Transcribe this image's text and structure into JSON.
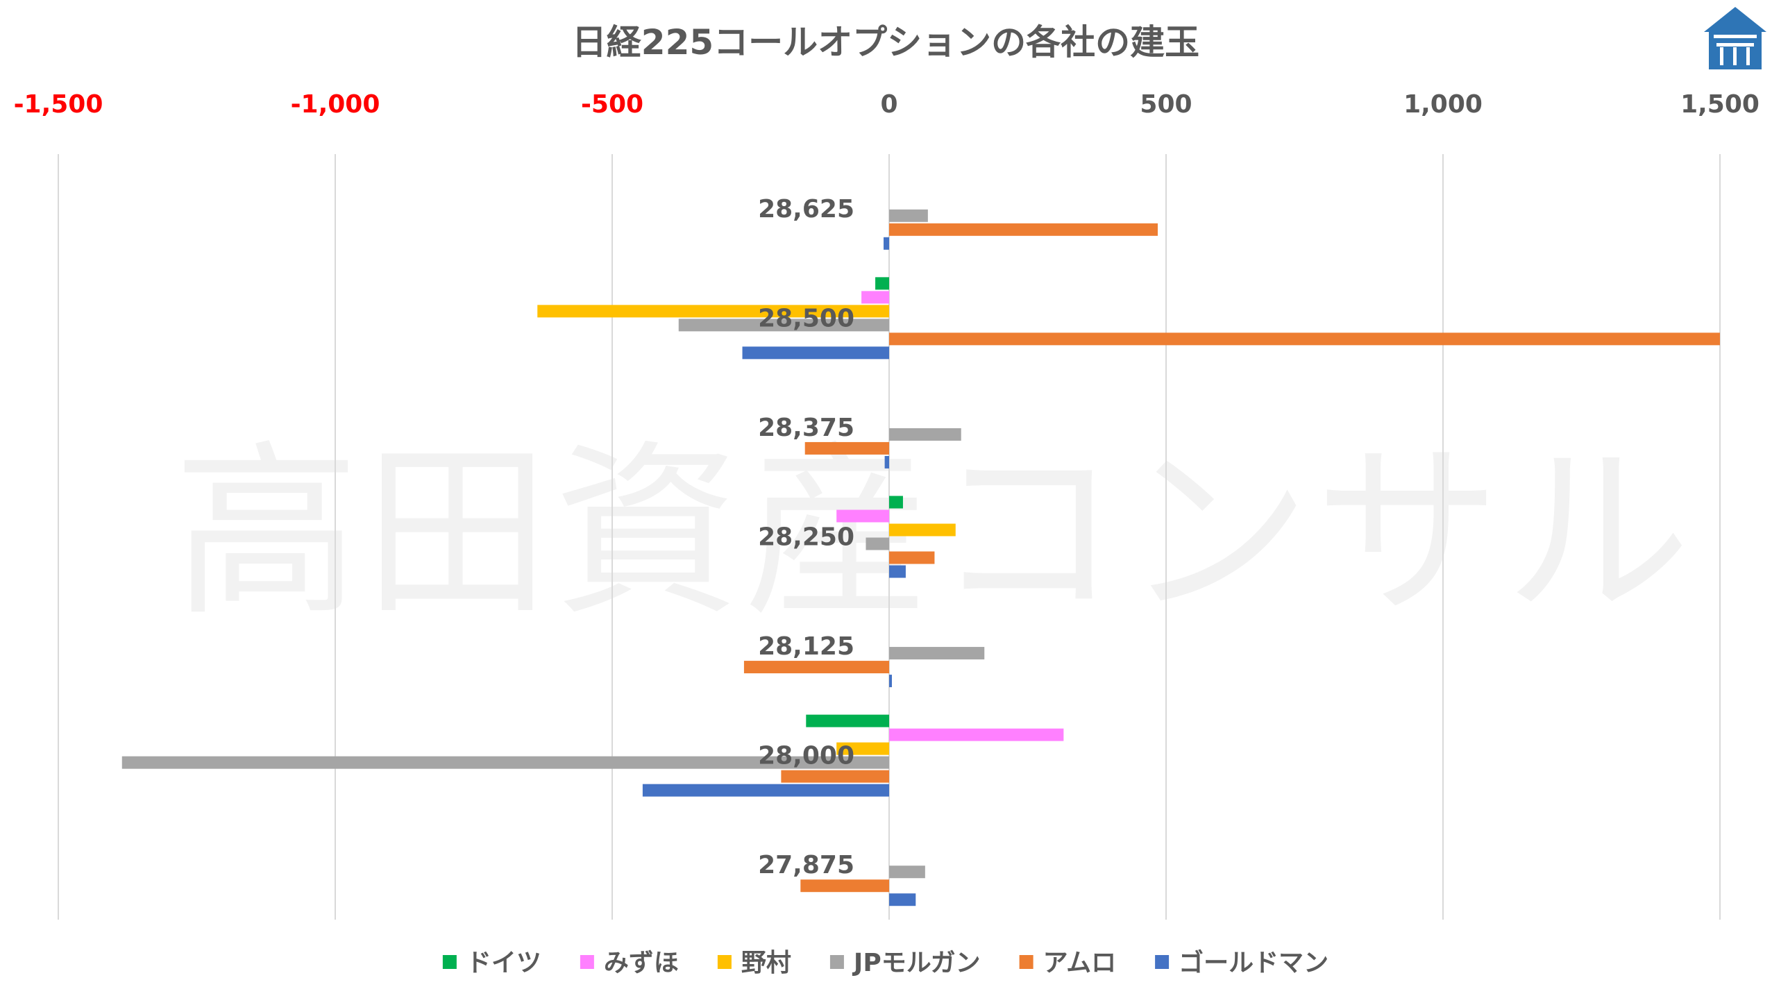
{
  "watermark": "高田資産コンサル",
  "logo": {
    "icon": "house-logo-icon",
    "color": "#2e75b6"
  },
  "chart_data": {
    "type": "bar",
    "orientation": "horizontal",
    "title": "日経225コールオプションの各社の建玉",
    "xlim": [
      -1500,
      1500
    ],
    "x_ticks": [
      -1500,
      -1000,
      -500,
      0,
      500,
      1000,
      1500
    ],
    "x_tick_labels": [
      "-1,500",
      "-1,000",
      "-500",
      "0",
      "500",
      "1,000",
      "1,500"
    ],
    "negative_tick_color": "#ff0000",
    "grid": "vertical",
    "legend_position": "bottom",
    "categories": [
      "28,625",
      "28,500",
      "28,375",
      "28,250",
      "28,125",
      "28,000",
      "27,875"
    ],
    "series": [
      {
        "name": "ドイツ",
        "color": "#00b050",
        "values": [
          0,
          -25,
          0,
          25,
          0,
          -150,
          0
        ]
      },
      {
        "name": "みずほ",
        "color": "#ff80ff",
        "values": [
          0,
          -50,
          0,
          -95,
          0,
          315,
          0
        ]
      },
      {
        "name": "野村",
        "color": "#ffc000",
        "values": [
          0,
          -635,
          0,
          120,
          0,
          -95,
          0
        ]
      },
      {
        "name": "JPモルガン",
        "color": "#a5a5a5",
        "values": [
          70,
          -380,
          130,
          -42,
          172,
          -1385,
          65
        ]
      },
      {
        "name": "アムロ",
        "color": "#ed7d31",
        "values": [
          485,
          1500,
          -152,
          82,
          -262,
          -195,
          -160
        ]
      },
      {
        "name": "ゴールドマン",
        "color": "#4472c4",
        "values": [
          -10,
          -265,
          -8,
          30,
          5,
          -445,
          48
        ]
      }
    ]
  }
}
